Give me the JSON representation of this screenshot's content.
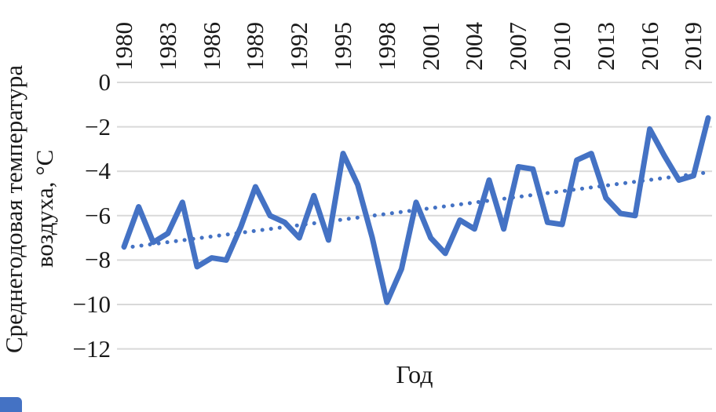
{
  "chart_data": {
    "type": "line",
    "title": "",
    "xlabel": "Год",
    "ylabel_line1": "Среднегодовая температура",
    "ylabel_line2": "воздуха, °C",
    "x": [
      1980,
      1981,
      1982,
      1983,
      1984,
      1985,
      1986,
      1987,
      1988,
      1989,
      1990,
      1991,
      1992,
      1993,
      1994,
      1995,
      1996,
      1997,
      1998,
      1999,
      2000,
      2001,
      2002,
      2003,
      2004,
      2005,
      2006,
      2007,
      2008,
      2009,
      2010,
      2011,
      2012,
      2013,
      2014,
      2015,
      2016,
      2017,
      2018,
      2019,
      2020
    ],
    "series": [
      {
        "name": "Среднегодовая температура воздуха, °C",
        "values": [
          -7.4,
          -5.6,
          -7.2,
          -6.8,
          -5.4,
          -8.3,
          -7.9,
          -8.0,
          -6.5,
          -4.7,
          -6.0,
          -6.3,
          -7.0,
          -5.1,
          -7.1,
          -3.2,
          -4.6,
          -7.0,
          -9.9,
          -8.4,
          -5.4,
          -7.0,
          -7.7,
          -6.2,
          -6.6,
          -4.4,
          -6.6,
          -3.8,
          -3.9,
          -6.3,
          -6.4,
          -3.5,
          -3.2,
          -5.2,
          -5.9,
          -6.0,
          -2.1,
          -3.3,
          -4.4,
          -4.2,
          -1.6
        ]
      }
    ],
    "trendline": {
      "style": "dotted",
      "start_x": 1980,
      "start_value": -7.45,
      "end_x": 2020,
      "end_value": -4.05
    },
    "y_ticks": [
      "0",
      "−2",
      "−4",
      "−6",
      "−8",
      "−10",
      "−12"
    ],
    "y_tick_values": [
      0,
      -2,
      -4,
      -6,
      -8,
      -10,
      -12
    ],
    "x_tick_labels": [
      "1980",
      "1983",
      "1986",
      "1989",
      "1992",
      "1995",
      "1998",
      "2001",
      "2004",
      "2007",
      "2010",
      "2013",
      "2016",
      "2019"
    ],
    "x_tick_step": 3,
    "ylim": [
      -12,
      0
    ],
    "grid": true,
    "legend": "none",
    "line_color": "#4472C4",
    "grid_color": "#D9D9D9"
  }
}
